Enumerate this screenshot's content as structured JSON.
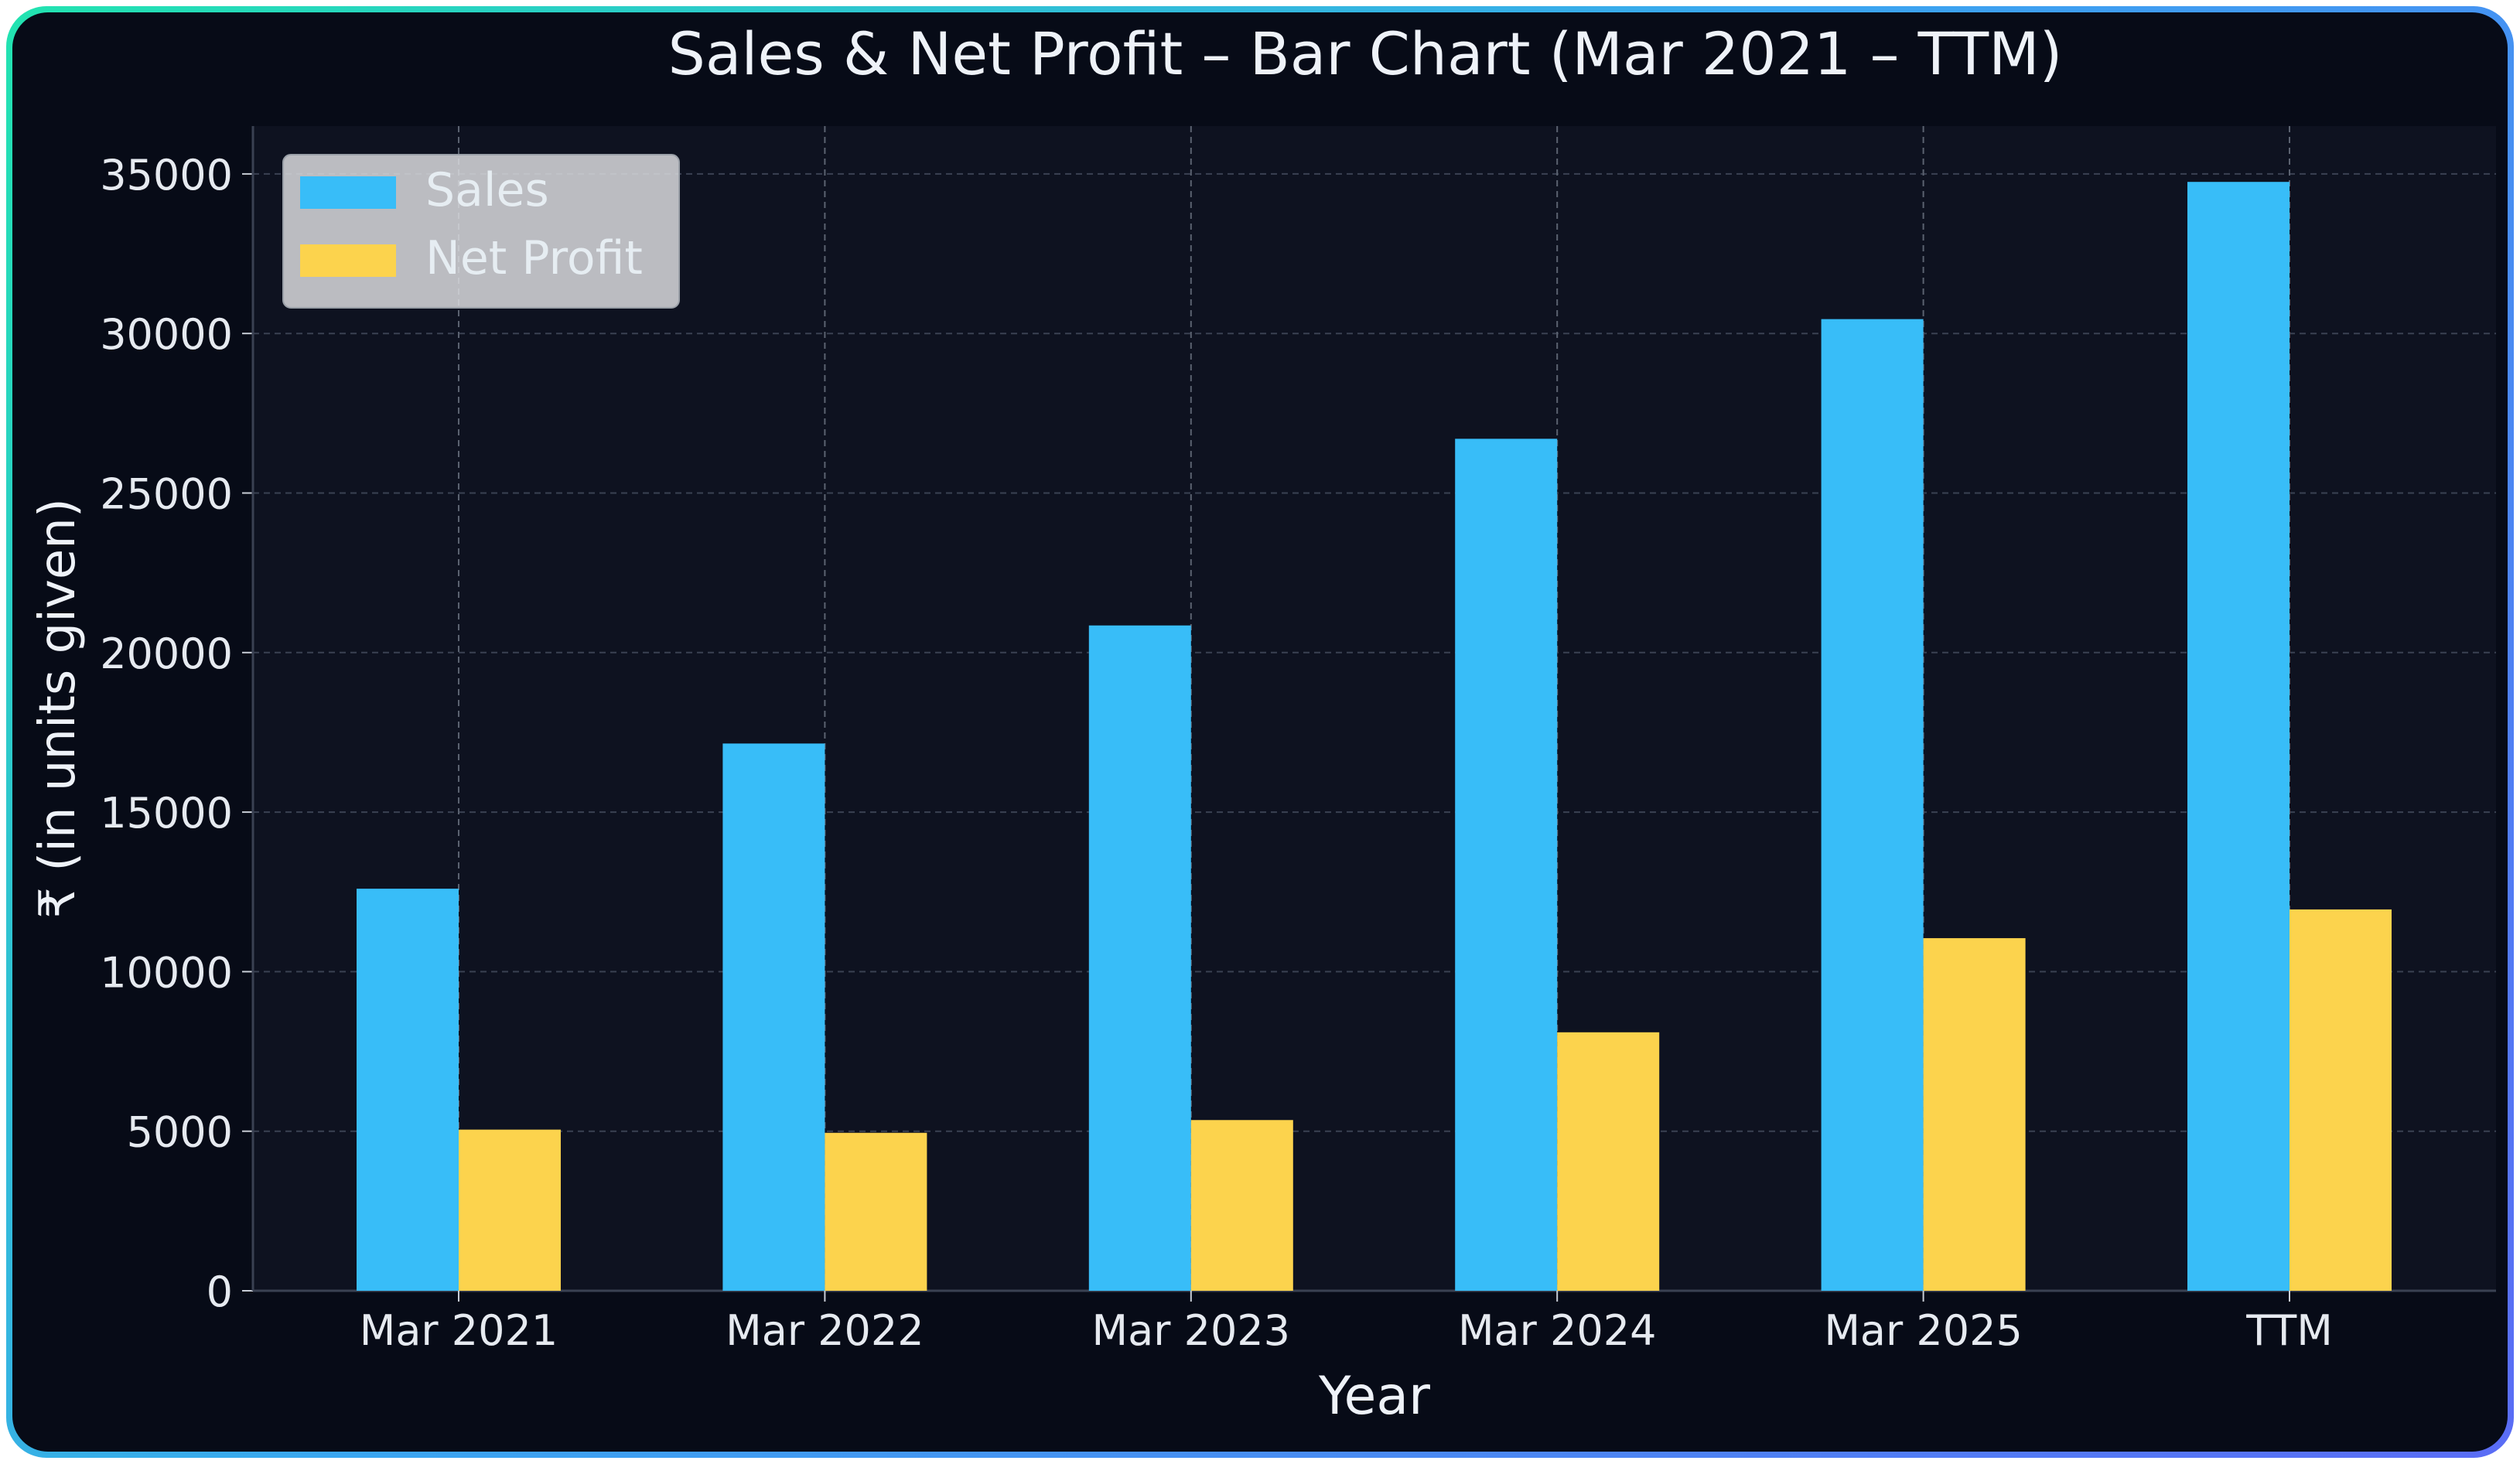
{
  "chart_data": {
    "type": "bar",
    "title": "Sales & Net Profit – Bar Chart (Mar 2021 – TTM)",
    "xlabel": "Year",
    "ylabel": "₹ (in units given)",
    "categories": [
      "Mar 2021",
      "Mar 2022",
      "Mar 2023",
      "Mar 2024",
      "Mar 2025",
      "TTM"
    ],
    "series": [
      {
        "name": "Sales",
        "color": "#38bdf8",
        "values": [
          12600,
          17150,
          20850,
          26700,
          30450,
          34750
        ]
      },
      {
        "name": "Net Profit",
        "color": "#fcd34d",
        "values": [
          5050,
          4950,
          5350,
          8100,
          11050,
          11950
        ]
      }
    ],
    "ylim": [
      0,
      36500
    ],
    "yticks": [
      0,
      5000,
      10000,
      15000,
      20000,
      25000,
      30000,
      35000
    ],
    "grid": true,
    "legend": "top-left"
  }
}
